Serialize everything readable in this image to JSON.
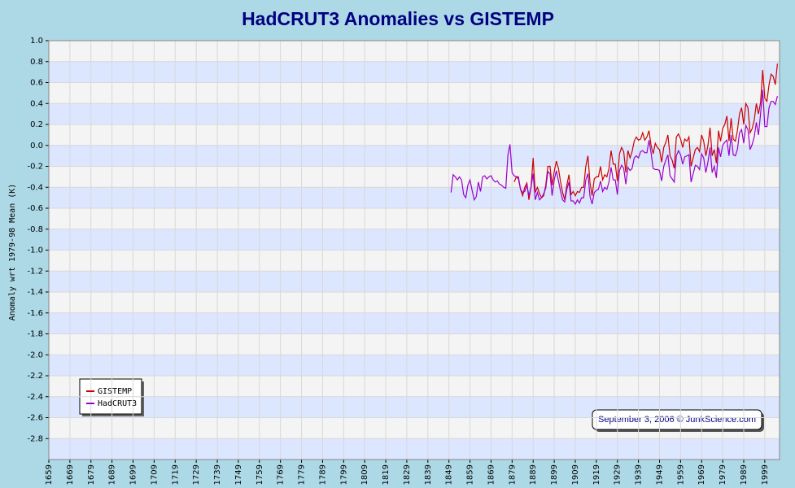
{
  "chart_data": {
    "type": "line",
    "title": "HadCRUT3 Anomalies vs GISTEMP",
    "y_label": "Anomaly wrt 1979-98 Mean (K)",
    "annotation": "September 3, 2006 © JunkScience.com",
    "x": [
      1850,
      1851,
      1852,
      1853,
      1854,
      1855,
      1856,
      1857,
      1858,
      1859,
      1860,
      1861,
      1862,
      1863,
      1864,
      1865,
      1866,
      1867,
      1868,
      1869,
      1870,
      1871,
      1872,
      1873,
      1874,
      1875,
      1876,
      1877,
      1878,
      1879,
      1880,
      1881,
      1882,
      1883,
      1884,
      1885,
      1886,
      1887,
      1888,
      1889,
      1890,
      1891,
      1892,
      1893,
      1894,
      1895,
      1896,
      1897,
      1898,
      1899,
      1900,
      1901,
      1902,
      1903,
      1904,
      1905,
      1906,
      1907,
      1908,
      1909,
      1910,
      1911,
      1912,
      1913,
      1914,
      1915,
      1916,
      1917,
      1918,
      1919,
      1920,
      1921,
      1922,
      1923,
      1924,
      1925,
      1926,
      1927,
      1928,
      1929,
      1930,
      1931,
      1932,
      1933,
      1934,
      1935,
      1936,
      1937,
      1938,
      1939,
      1940,
      1941,
      1942,
      1943,
      1944,
      1945,
      1946,
      1947,
      1948,
      1949,
      1950,
      1951,
      1952,
      1953,
      1954,
      1955,
      1956,
      1957,
      1958,
      1959,
      1960,
      1961,
      1962,
      1963,
      1964,
      1965,
      1966,
      1967,
      1968,
      1969,
      1970,
      1971,
      1972,
      1973,
      1974,
      1975,
      1976,
      1977,
      1978,
      1979,
      1980,
      1981,
      1982,
      1983,
      1984,
      1985,
      1986,
      1987,
      1988,
      1989,
      1990,
      1991,
      1992,
      1993,
      1994,
      1995,
      1996,
      1997,
      1998,
      1999,
      2000,
      2001,
      2002,
      2003,
      2004,
      2005
    ],
    "series": [
      {
        "name": "GISTEMP",
        "color": "#cc0000",
        "values": [
          null,
          null,
          null,
          null,
          null,
          null,
          null,
          null,
          null,
          null,
          null,
          null,
          null,
          null,
          null,
          null,
          null,
          null,
          null,
          null,
          null,
          null,
          null,
          null,
          null,
          null,
          null,
          null,
          null,
          null,
          -0.35,
          -0.3,
          -0.32,
          -0.42,
          -0.48,
          -0.4,
          -0.36,
          -0.52,
          -0.4,
          -0.12,
          -0.45,
          -0.4,
          -0.46,
          -0.5,
          -0.48,
          -0.38,
          -0.2,
          -0.2,
          -0.38,
          -0.25,
          -0.15,
          -0.22,
          -0.35,
          -0.45,
          -0.52,
          -0.38,
          -0.28,
          -0.47,
          -0.44,
          -0.48,
          -0.44,
          -0.45,
          -0.4,
          -0.4,
          -0.2,
          -0.1,
          -0.36,
          -0.48,
          -0.32,
          -0.3,
          -0.3,
          -0.2,
          -0.33,
          -0.28,
          -0.3,
          -0.22,
          -0.05,
          -0.18,
          -0.18,
          -0.34,
          -0.08,
          -0.02,
          -0.06,
          -0.26,
          -0.05,
          -0.12,
          -0.06,
          0.04,
          0.08,
          0.05,
          0.06,
          0.12,
          0.05,
          0.08,
          0.14,
          0.0,
          -0.08,
          0.02,
          -0.02,
          -0.04,
          -0.16,
          -0.02,
          0.03,
          0.1,
          -0.1,
          -0.14,
          -0.22,
          0.08,
          0.11,
          0.06,
          -0.02,
          0.06,
          0.04,
          0.08,
          -0.2,
          -0.12,
          -0.04,
          -0.02,
          -0.06,
          0.1,
          0.04,
          -0.1,
          0.0,
          0.17,
          -0.1,
          -0.04,
          -0.17,
          0.14,
          0.04,
          0.16,
          0.2,
          0.28,
          0.04,
          0.26,
          0.06,
          0.04,
          0.14,
          0.3,
          0.36,
          0.2,
          0.4,
          0.36,
          0.12,
          0.16,
          0.24,
          0.4,
          0.3,
          0.41,
          0.72,
          0.45,
          0.42,
          0.58,
          0.68,
          0.66,
          0.58,
          0.78
        ]
      },
      {
        "name": "HadCRUT3",
        "color": "#9900cc",
        "values": [
          -0.45,
          -0.28,
          -0.3,
          -0.33,
          -0.3,
          -0.33,
          -0.47,
          -0.5,
          -0.38,
          -0.33,
          -0.43,
          -0.52,
          -0.49,
          -0.35,
          -0.44,
          -0.3,
          -0.29,
          -0.32,
          -0.3,
          -0.29,
          -0.33,
          -0.35,
          -0.34,
          -0.37,
          -0.38,
          -0.4,
          -0.41,
          -0.09,
          0.01,
          -0.26,
          -0.29,
          -0.3,
          -0.3,
          -0.42,
          -0.45,
          -0.44,
          -0.38,
          -0.48,
          -0.4,
          -0.27,
          -0.52,
          -0.45,
          -0.52,
          -0.5,
          -0.46,
          -0.41,
          -0.25,
          -0.27,
          -0.48,
          -0.33,
          -0.24,
          -0.34,
          -0.44,
          -0.52,
          -0.54,
          -0.42,
          -0.35,
          -0.53,
          -0.53,
          -0.56,
          -0.52,
          -0.55,
          -0.5,
          -0.5,
          -0.33,
          -0.27,
          -0.49,
          -0.56,
          -0.45,
          -0.43,
          -0.42,
          -0.34,
          -0.44,
          -0.4,
          -0.42,
          -0.35,
          -0.21,
          -0.33,
          -0.33,
          -0.47,
          -0.24,
          -0.19,
          -0.22,
          -0.37,
          -0.21,
          -0.24,
          -0.22,
          -0.12,
          -0.1,
          -0.12,
          -0.06,
          -0.05,
          -0.07,
          -0.07,
          0.05,
          -0.07,
          -0.22,
          -0.23,
          -0.23,
          -0.24,
          -0.34,
          -0.2,
          -0.14,
          -0.09,
          -0.29,
          -0.32,
          -0.35,
          -0.1,
          -0.05,
          -0.09,
          -0.18,
          -0.11,
          -0.1,
          -0.09,
          -0.35,
          -0.27,
          -0.19,
          -0.2,
          -0.23,
          -0.08,
          -0.12,
          -0.26,
          -0.16,
          -0.02,
          -0.26,
          -0.2,
          -0.31,
          -0.02,
          -0.11,
          0.0,
          0.03,
          0.05,
          -0.1,
          0.1,
          -0.09,
          -0.1,
          -0.04,
          0.12,
          0.15,
          0.02,
          0.19,
          0.15,
          -0.04,
          0.01,
          0.08,
          0.22,
          0.1,
          0.3,
          0.53,
          0.18,
          0.18,
          0.36,
          0.42,
          0.42,
          0.39,
          0.47
        ]
      }
    ],
    "xlim": [
      1659,
      2006
    ],
    "xticks": [
      1659,
      1669,
      1679,
      1689,
      1699,
      1709,
      1719,
      1729,
      1739,
      1749,
      1759,
      1769,
      1779,
      1789,
      1799,
      1809,
      1819,
      1829,
      1839,
      1849,
      1859,
      1869,
      1879,
      1889,
      1899,
      1909,
      1919,
      1929,
      1939,
      1949,
      1959,
      1969,
      1979,
      1989,
      1999
    ],
    "ylim": [
      -3,
      1
    ],
    "yticks": [
      {
        "value": 1,
        "label": "1.0"
      },
      0.8,
      0.6,
      0.4,
      0.2,
      {
        "value": 0,
        "label": "0.0"
      },
      -0.2,
      -0.4,
      -0.6,
      -0.8,
      {
        "value": -1,
        "label": "-1.0"
      },
      -1.2,
      -1.4,
      -1.6,
      -1.8,
      {
        "value": -2,
        "label": "-2.0"
      },
      -2.2,
      -2.4,
      -2.6,
      -2.8
    ],
    "grid": true,
    "legend": "lower left"
  }
}
